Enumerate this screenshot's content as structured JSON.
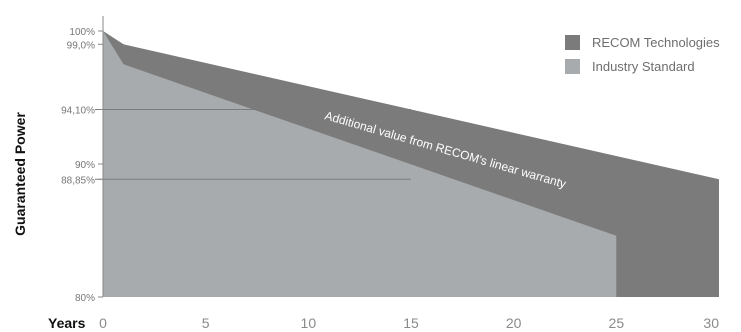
{
  "chart_data": {
    "type": "area",
    "ylabel": "Guaranteed Power",
    "xlabel": "Years",
    "xlim": [
      0,
      30
    ],
    "ylim": [
      80,
      100
    ],
    "x_ticks": [
      0,
      5,
      10,
      15,
      20,
      25,
      30
    ],
    "y_ticks": [
      {
        "value": 100,
        "label": "100%"
      },
      {
        "value": 99.0,
        "label": "99,0%"
      },
      {
        "value": 94.1,
        "label": "94,10%"
      },
      {
        "value": 90,
        "label": "90%"
      },
      {
        "value": 88.85,
        "label": "88,85%"
      },
      {
        "value": 80,
        "label": "80%"
      }
    ],
    "reference_lines": [
      {
        "value": 94.1,
        "x_end": 15
      },
      {
        "value": 88.85,
        "x_end": 15
      }
    ],
    "series": [
      {
        "name": "RECOM Technologies",
        "color": "#7b7b7b",
        "points": [
          [
            0,
            100
          ],
          [
            1,
            99.0
          ],
          [
            30,
            88.85
          ],
          [
            30,
            80
          ]
        ]
      },
      {
        "name": "Industry Standard",
        "color": "#a8abad",
        "points": [
          [
            0,
            100
          ],
          [
            1,
            97.5
          ],
          [
            25,
            84.6
          ],
          [
            25,
            80
          ]
        ]
      }
    ],
    "annotation": {
      "text": "Additional value from RECOM's linear warranty",
      "color": "#ffffff"
    },
    "legend_position": "top-right",
    "grid": false
  }
}
